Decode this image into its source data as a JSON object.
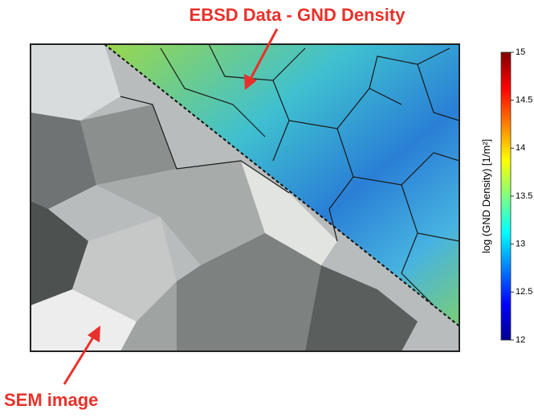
{
  "annotations": {
    "ebsd": "EBSD Data - GND Density",
    "sem": "SEM image"
  },
  "colorbar": {
    "label": "log (GND Density) [1/m²]",
    "lim": [
      12,
      15
    ],
    "ticks": [
      12,
      12.5,
      13,
      13.5,
      14,
      14.5,
      15
    ]
  }
}
